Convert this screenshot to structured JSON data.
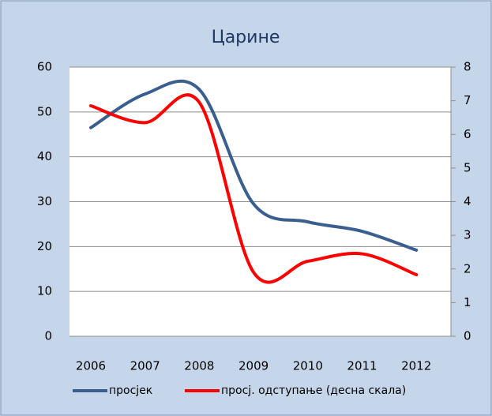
{
  "chart_data": {
    "type": "line",
    "title": "Царине",
    "categories": [
      "2006",
      "2007",
      "2008",
      "2009",
      "2010",
      "2011",
      "2012"
    ],
    "series": [
      {
        "name": "просјек",
        "color": "#3a5f8f",
        "values": [
          46.5,
          54,
          55,
          29.5,
          25.5,
          23.4,
          19.2
        ]
      },
      {
        "name": "просј. одступање (десна скала)",
        "color": "#ff0000",
        "axis": "y2",
        "values": [
          6.85,
          6.35,
          6.95,
          1.9,
          2.23,
          2.45,
          1.83
        ]
      }
    ],
    "ylim": [
      0,
      60
    ],
    "yticks": [
      0,
      10,
      20,
      30,
      40,
      50,
      60
    ],
    "y2lim": [
      0,
      8
    ],
    "y2ticks": [
      0,
      1,
      2,
      3,
      4,
      5,
      6,
      7,
      8
    ],
    "grid": true,
    "legend": "bottom"
  }
}
